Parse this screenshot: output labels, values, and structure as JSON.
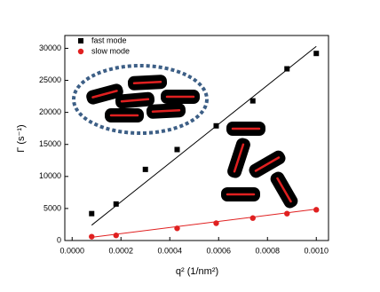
{
  "chart_data": {
    "type": "scatter",
    "xlabel": "q² (1/nm²)",
    "ylabel": "Γ (s⁻¹)",
    "xlim": [
      -3e-05,
      0.00105
    ],
    "ylim": [
      0,
      32000
    ],
    "xticks": [
      {
        "value": 0,
        "label": "0.0000"
      },
      {
        "value": 0.0002,
        "label": "0.0002"
      },
      {
        "value": 0.0004,
        "label": "0.0004"
      },
      {
        "value": 0.0006,
        "label": "0.0006"
      },
      {
        "value": 0.0008,
        "label": "0.0008"
      },
      {
        "value": 0.001,
        "label": "0.0010"
      }
    ],
    "yticks": [
      0,
      5000,
      10000,
      15000,
      20000,
      25000,
      30000
    ],
    "legend": "upper left",
    "series": [
      {
        "name": "fast mode",
        "color": "#000000",
        "marker": "square",
        "x": [
          8e-05,
          0.00018,
          0.0003,
          0.00043,
          0.00059,
          0.00074,
          0.00088,
          0.001
        ],
        "values": [
          4200,
          5700,
          11100,
          14200,
          17900,
          21800,
          26800,
          29200
        ]
      },
      {
        "name": "slow mode",
        "color": "#e02020",
        "marker": "circle",
        "x": [
          8e-05,
          0.00018,
          0.00043,
          0.00059,
          0.00074,
          0.00088,
          0.001
        ],
        "values": [
          600,
          800,
          1900,
          2700,
          3500,
          4200,
          4800
        ]
      }
    ],
    "fit_lines": [
      {
        "color": "#000000",
        "x": [
          8e-05,
          0.001
        ],
        "values": [
          2400,
          30300
        ]
      },
      {
        "color": "#e02020",
        "x": [
          8e-05,
          0.001
        ],
        "values": [
          500,
          4900
        ]
      }
    ]
  }
}
